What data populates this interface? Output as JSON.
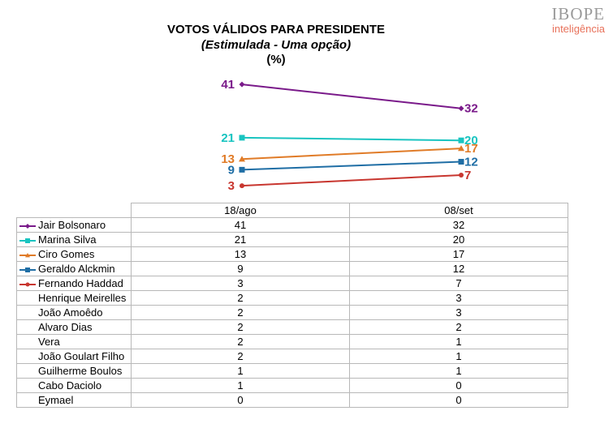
{
  "title": {
    "line1": "VOTOS VÁLIDOS PARA PRESIDENTE",
    "line2": "(Estimulada - Uma opção)",
    "line3": "(%)"
  },
  "logo": {
    "main": "IBOPE",
    "sub": "inteligência"
  },
  "chart_data": {
    "type": "line",
    "title": "VOTOS VÁLIDOS PARA PRESIDENTE",
    "subtitle": "(Estimulada - Uma opção)",
    "ylabel": "(%)",
    "categories": [
      "18/ago",
      "08/set"
    ],
    "series": [
      {
        "name": "Jair Bolsonaro",
        "values": [
          41,
          32
        ],
        "color": "#7a1a8a",
        "marker": "diamond"
      },
      {
        "name": "Marina Silva",
        "values": [
          21,
          20
        ],
        "color": "#19c4c0",
        "marker": "square"
      },
      {
        "name": "Ciro Gomes",
        "values": [
          13,
          17
        ],
        "color": "#e07b27",
        "marker": "triangle"
      },
      {
        "name": "Geraldo Alckmin",
        "values": [
          9,
          12
        ],
        "color": "#1f6ea5",
        "marker": "square"
      },
      {
        "name": "Fernando Haddad",
        "values": [
          3,
          7
        ],
        "color": "#c8362f",
        "marker": "circle"
      }
    ],
    "table_rows": [
      {
        "name": "Jair Bolsonaro",
        "values": [
          "41",
          "32"
        ],
        "legend": 0
      },
      {
        "name": "Marina Silva",
        "values": [
          "21",
          "20"
        ],
        "legend": 1
      },
      {
        "name": "Ciro Gomes",
        "values": [
          "13",
          "17"
        ],
        "legend": 2
      },
      {
        "name": "Geraldo Alckmin",
        "values": [
          "9",
          "12"
        ],
        "legend": 3
      },
      {
        "name": "Fernando Haddad",
        "values": [
          "3",
          "7"
        ],
        "legend": 4
      },
      {
        "name": "Henrique Meirelles",
        "values": [
          "2",
          "3"
        ]
      },
      {
        "name": "João Amoêdo",
        "values": [
          "2",
          "3"
        ]
      },
      {
        "name": "Alvaro Dias",
        "values": [
          "2",
          "2"
        ]
      },
      {
        "name": "Vera",
        "values": [
          "2",
          "1"
        ]
      },
      {
        "name": "João Goulart Filho",
        "values": [
          "2",
          "1"
        ]
      },
      {
        "name": "Guilherme Boulos",
        "values": [
          "1",
          "1"
        ]
      },
      {
        "name": "Cabo Daciolo",
        "values": [
          "1",
          "0"
        ]
      },
      {
        "name": "Eymael",
        "values": [
          "0",
          "0"
        ]
      }
    ]
  }
}
